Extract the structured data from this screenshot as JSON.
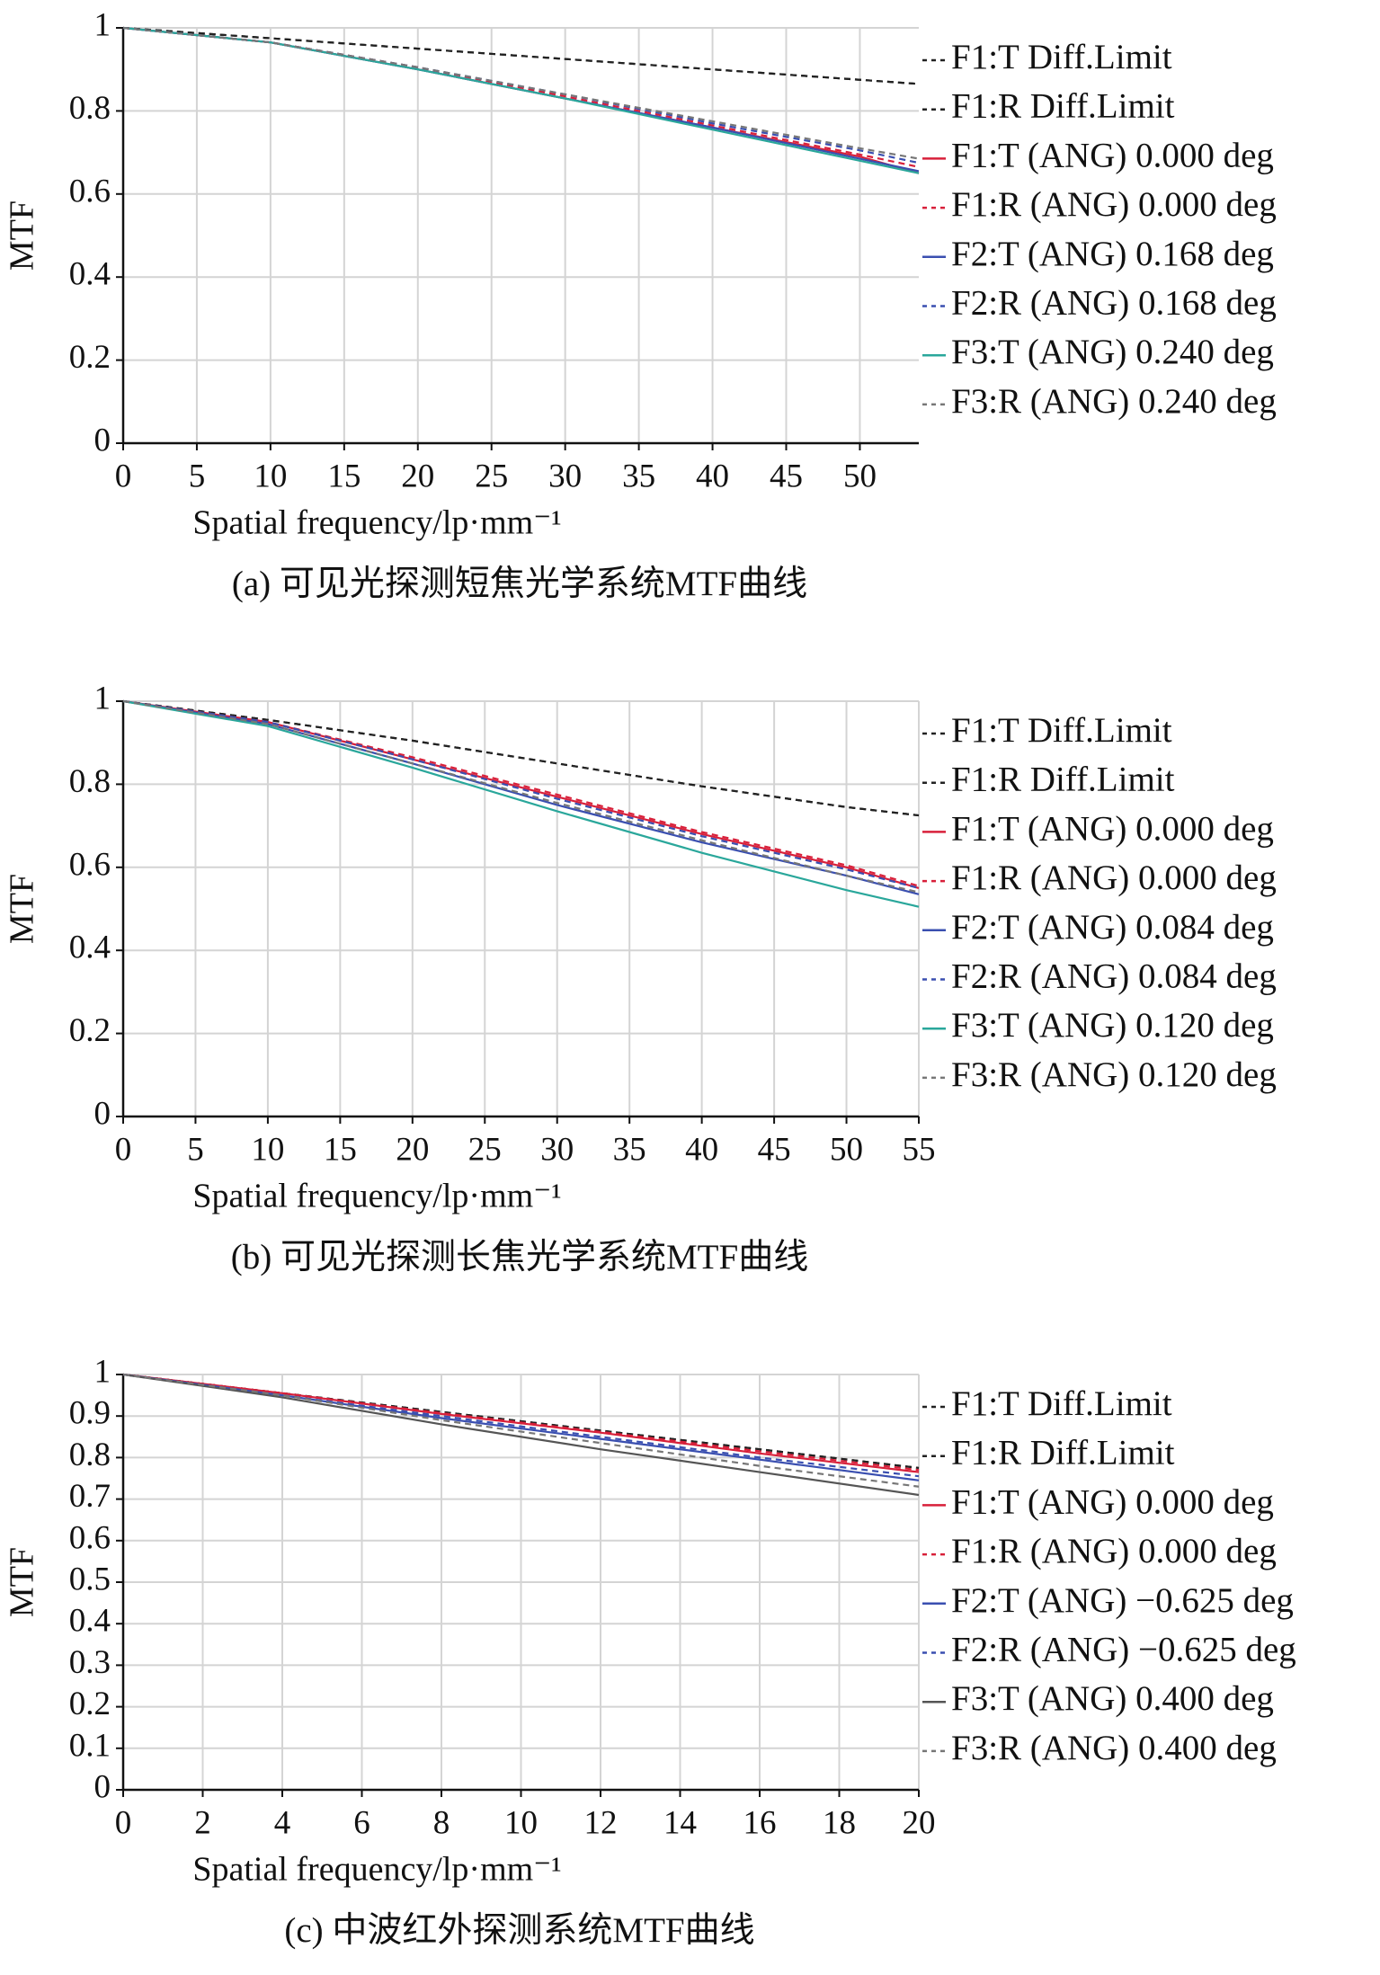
{
  "chart_data": [
    {
      "type": "line",
      "y_label": "MTF",
      "x_label": "Spatial frequency/lp·mm⁻¹",
      "caption": "(a) 可见光探测短焦光学系统MTF曲线",
      "x": [
        0,
        10,
        20,
        30,
        40,
        50,
        54
      ],
      "xlim": [
        0,
        54
      ],
      "ylim": [
        0,
        1
      ],
      "xticks": [
        0,
        5,
        10,
        15,
        20,
        25,
        30,
        35,
        40,
        45,
        50
      ],
      "yticks": [
        0,
        0.2,
        0.4,
        0.6,
        0.8,
        1
      ],
      "grid": true,
      "series": [
        {
          "name": "F1:T Diff.Limit",
          "color": "#222222",
          "dashed": true,
          "values": [
            1,
            0.975,
            0.95,
            0.925,
            0.9,
            0.875,
            0.865
          ]
        },
        {
          "name": "F1:R Diff.Limit",
          "color": "#222222",
          "dashed": true,
          "values": [
            1,
            0.975,
            0.95,
            0.925,
            0.9,
            0.875,
            0.865
          ]
        },
        {
          "name": "F1:T (ANG) 0.000 deg",
          "color": "#d8203a",
          "dashed": false,
          "values": [
            1,
            0.965,
            0.9,
            0.83,
            0.76,
            0.69,
            0.65
          ]
        },
        {
          "name": "F1:R (ANG) 0.000 deg",
          "color": "#d8203a",
          "dashed": true,
          "values": [
            1,
            0.965,
            0.905,
            0.835,
            0.765,
            0.695,
            0.665
          ]
        },
        {
          "name": "F2:T (ANG) 0.168 deg",
          "color": "#3a4fb0",
          "dashed": false,
          "values": [
            1,
            0.965,
            0.9,
            0.83,
            0.76,
            0.685,
            0.655
          ]
        },
        {
          "name": "F2:R (ANG) 0.168 deg",
          "color": "#3a4fb0",
          "dashed": true,
          "values": [
            1,
            0.965,
            0.905,
            0.84,
            0.77,
            0.705,
            0.675
          ]
        },
        {
          "name": "F3:T (ANG) 0.240 deg",
          "color": "#2aa79b",
          "dashed": false,
          "values": [
            1,
            0.965,
            0.9,
            0.83,
            0.755,
            0.68,
            0.65
          ]
        },
        {
          "name": "F3:R (ANG) 0.240 deg",
          "color": "#777777",
          "dashed": true,
          "values": [
            1,
            0.965,
            0.905,
            0.84,
            0.775,
            0.71,
            0.685
          ]
        }
      ]
    },
    {
      "type": "line",
      "y_label": "MTF",
      "x_label": "Spatial frequency/lp·mm⁻¹",
      "caption": "(b) 可见光探测长焦光学系统MTF曲线",
      "x": [
        0,
        10,
        20,
        30,
        40,
        50,
        55
      ],
      "xlim": [
        0,
        55
      ],
      "ylim": [
        0,
        1
      ],
      "xticks": [
        0,
        5,
        10,
        15,
        20,
        25,
        30,
        35,
        40,
        45,
        50,
        55
      ],
      "yticks": [
        0,
        0.2,
        0.4,
        0.6,
        0.8,
        1
      ],
      "grid": true,
      "series": [
        {
          "name": "F1:T Diff.Limit",
          "color": "#222222",
          "dashed": true,
          "values": [
            1,
            0.955,
            0.905,
            0.85,
            0.795,
            0.745,
            0.725
          ]
        },
        {
          "name": "F1:R Diff.Limit",
          "color": "#222222",
          "dashed": true,
          "values": [
            1,
            0.955,
            0.905,
            0.85,
            0.795,
            0.745,
            0.725
          ]
        },
        {
          "name": "F1:T (ANG) 0.000 deg",
          "color": "#d8203a",
          "dashed": false,
          "values": [
            1,
            0.95,
            0.86,
            0.77,
            0.68,
            0.6,
            0.55
          ]
        },
        {
          "name": "F1:R (ANG) 0.000 deg",
          "color": "#d8203a",
          "dashed": true,
          "values": [
            1,
            0.95,
            0.865,
            0.775,
            0.685,
            0.605,
            0.555
          ]
        },
        {
          "name": "F2:T (ANG) 0.084 deg",
          "color": "#3a4fb0",
          "dashed": false,
          "values": [
            1,
            0.945,
            0.85,
            0.75,
            0.66,
            0.58,
            0.535
          ]
        },
        {
          "name": "F2:R (ANG) 0.084 deg",
          "color": "#3a4fb0",
          "dashed": true,
          "values": [
            1,
            0.95,
            0.86,
            0.765,
            0.675,
            0.595,
            0.55
          ]
        },
        {
          "name": "F3:T (ANG) 0.120 deg",
          "color": "#2aa79b",
          "dashed": false,
          "values": [
            1,
            0.94,
            0.84,
            0.735,
            0.635,
            0.545,
            0.505
          ]
        },
        {
          "name": "F3:R (ANG) 0.120 deg",
          "color": "#777777",
          "dashed": true,
          "values": [
            1,
            0.945,
            0.85,
            0.755,
            0.665,
            0.58,
            0.54
          ]
        }
      ]
    },
    {
      "type": "line",
      "y_label": "MTF",
      "x_label": "Spatial frequency/lp·mm⁻¹",
      "caption": "(c) 中波红外探测系统MTF曲线",
      "x": [
        0,
        4,
        8,
        12,
        16,
        20
      ],
      "xlim": [
        0,
        20
      ],
      "ylim": [
        0,
        1
      ],
      "xticks": [
        0,
        2,
        4,
        6,
        8,
        10,
        12,
        14,
        16,
        18,
        20
      ],
      "yticks": [
        0,
        0.1,
        0.2,
        0.3,
        0.4,
        0.5,
        0.6,
        0.7,
        0.8,
        0.9,
        1
      ],
      "grid": true,
      "series": [
        {
          "name": "F1:T Diff.Limit",
          "color": "#222222",
          "dashed": true,
          "values": [
            1,
            0.955,
            0.91,
            0.865,
            0.82,
            0.775
          ]
        },
        {
          "name": "F1:R Diff.Limit",
          "color": "#222222",
          "dashed": true,
          "values": [
            1,
            0.955,
            0.91,
            0.865,
            0.82,
            0.775
          ]
        },
        {
          "name": "F1:T (ANG) 0.000 deg",
          "color": "#d8203a",
          "dashed": false,
          "values": [
            1,
            0.955,
            0.905,
            0.86,
            0.81,
            0.765
          ]
        },
        {
          "name": "F1:R (ANG) 0.000 deg",
          "color": "#d8203a",
          "dashed": true,
          "values": [
            1,
            0.955,
            0.907,
            0.862,
            0.815,
            0.77
          ]
        },
        {
          "name": "F2:T (ANG) −0.625 deg",
          "color": "#3a4fb0",
          "dashed": false,
          "values": [
            1,
            0.95,
            0.895,
            0.845,
            0.795,
            0.745
          ]
        },
        {
          "name": "F2:R (ANG) −0.625 deg",
          "color": "#3a4fb0",
          "dashed": true,
          "values": [
            1,
            0.95,
            0.9,
            0.85,
            0.8,
            0.755
          ]
        },
        {
          "name": "F3:T (ANG) 0.400 deg",
          "color": "#555555",
          "dashed": false,
          "values": [
            1,
            0.945,
            0.88,
            0.82,
            0.765,
            0.71
          ]
        },
        {
          "name": "F3:R (ANG) 0.400 deg",
          "color": "#777777",
          "dashed": true,
          "values": [
            1,
            0.95,
            0.89,
            0.835,
            0.78,
            0.73
          ]
        }
      ]
    }
  ]
}
